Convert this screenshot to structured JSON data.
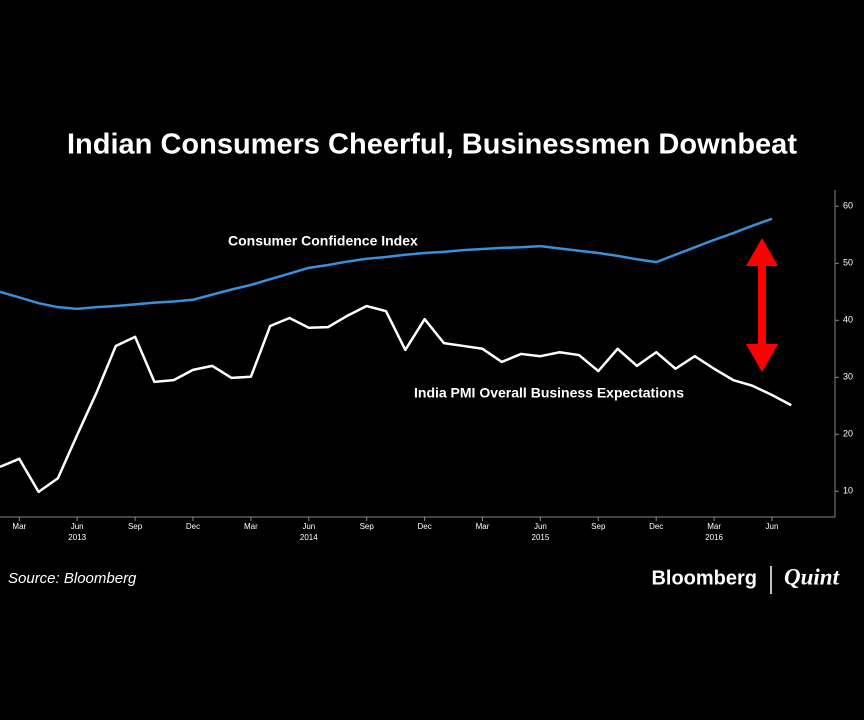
{
  "chart_data": {
    "type": "line",
    "title": "Indian Consumers Cheerful, Businessmen Downbeat",
    "source": "Source: Bloomberg",
    "brand": "Bloomberg",
    "brand_partner": "Quint",
    "categories": [
      null,
      "Mar",
      null,
      null,
      "Jun",
      null,
      null,
      "Sep",
      null,
      null,
      "Dec",
      null,
      null,
      "Mar",
      null,
      null,
      "Jun",
      null,
      null,
      "Sep",
      null,
      null,
      "Dec",
      null,
      null,
      "Mar",
      null,
      null,
      "Jun",
      null,
      null,
      "Sep",
      null,
      null,
      "Dec",
      null,
      null,
      "Mar",
      null,
      null,
      "Jun",
      null
    ],
    "year_labels": [
      {
        "text": "2013",
        "category": 4
      },
      {
        "text": "2014",
        "category": 16
      },
      {
        "text": "2015",
        "category": 28
      },
      {
        "text": "2016",
        "category": 37
      }
    ],
    "series": [
      {
        "name": "Consumer Confidence Index",
        "color": "#3a8fd9",
        "values": [
          45.0,
          44.0,
          43.0,
          42.3,
          42.0,
          42.3,
          42.5,
          42.8,
          43.1,
          43.3,
          43.6,
          44.5,
          45.4,
          46.2,
          47.2,
          48.2,
          49.2,
          49.7,
          50.3,
          50.8,
          51.1,
          51.5,
          51.8,
          52.0,
          52.3,
          52.5,
          52.7,
          52.8,
          53.0,
          52.6,
          52.2,
          51.8,
          51.3,
          50.7,
          50.2,
          51.5,
          52.8,
          54.1,
          55.3,
          56.6,
          57.8,
          null
        ]
      },
      {
        "name": "India PMI Overall Business Expectations",
        "color": "#ffffff",
        "values": [
          14.3,
          15.7,
          9.9,
          12.3,
          19.9,
          27.3,
          35.5,
          37.1,
          29.2,
          29.5,
          31.3,
          32.0,
          29.9,
          30.1,
          39.0,
          40.4,
          38.7,
          38.8,
          40.8,
          42.5,
          41.6,
          34.8,
          40.2,
          36.0,
          35.5,
          35.0,
          32.7,
          34.1,
          33.7,
          34.4,
          33.9,
          31.1,
          35.0,
          32.0,
          34.4,
          31.5,
          33.7,
          31.5,
          29.5,
          28.5,
          26.9,
          25.1
        ]
      }
    ],
    "ylim": [
      5.5,
      62.5
    ],
    "yticks": [
      60,
      50,
      40,
      30,
      20,
      10
    ],
    "grid": false
  }
}
